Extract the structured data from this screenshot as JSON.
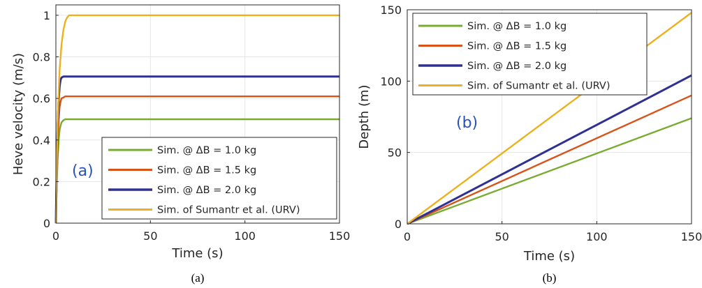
{
  "chart_data": [
    {
      "type": "line",
      "panel_label": "(a)",
      "caption": "(a)",
      "xlabel": "Time (s)",
      "ylabel": "Heve velocity (m/s)",
      "xlim": [
        0,
        150
      ],
      "ylim": [
        0,
        1.05
      ],
      "xticks": [
        0,
        50,
        100,
        150
      ],
      "yticks": [
        0,
        0.2,
        0.4,
        0.6,
        0.8,
        1
      ],
      "ytick_labels": [
        "0",
        "0.2",
        "0.4",
        "0.6",
        "0.8",
        "1"
      ],
      "grid": true,
      "legend_position": "bottom-right",
      "series": [
        {
          "name": "Sim. @ ΔB = 1.0 kg",
          "color": "#77ac30",
          "x": [
            0,
            0.5,
            1,
            1.5,
            2,
            2.5,
            3,
            4,
            5,
            6,
            8,
            150
          ],
          "y": [
            0,
            0.2,
            0.32,
            0.4,
            0.45,
            0.47,
            0.485,
            0.495,
            0.5,
            0.5,
            0.5,
            0.5
          ]
        },
        {
          "name": "Sim. @ ΔB = 1.5 kg",
          "color": "#d95319",
          "x": [
            0,
            0.5,
            1,
            1.5,
            2,
            2.5,
            3,
            4,
            5,
            6,
            8,
            150
          ],
          "y": [
            0,
            0.25,
            0.4,
            0.5,
            0.56,
            0.585,
            0.6,
            0.605,
            0.61,
            0.61,
            0.61,
            0.61
          ]
        },
        {
          "name": "Sim. @ ΔB = 2.0 kg",
          "color": "#2e3192",
          "x": [
            0,
            0.5,
            1,
            1.5,
            2,
            2.5,
            3,
            4,
            5,
            6,
            8,
            150
          ],
          "y": [
            0,
            0.3,
            0.48,
            0.6,
            0.66,
            0.69,
            0.7,
            0.705,
            0.705,
            0.705,
            0.705,
            0.705
          ]
        },
        {
          "name": "Sim. of Sumantr et al. (URV)",
          "color": "#edb120",
          "x": [
            0,
            0.5,
            1,
            1.5,
            2,
            3,
            4,
            5,
            6,
            7,
            8,
            10,
            150
          ],
          "y": [
            0,
            0.3,
            0.5,
            0.64,
            0.74,
            0.86,
            0.93,
            0.97,
            0.99,
            1.0,
            1.0,
            1.0,
            1.0
          ]
        }
      ]
    },
    {
      "type": "line",
      "panel_label": "(b)",
      "caption": "(b)",
      "xlabel": "Time (s)",
      "ylabel": "Depth (m)",
      "xlim": [
        0,
        150
      ],
      "ylim": [
        0,
        150
      ],
      "xticks": [
        0,
        50,
        100,
        150
      ],
      "yticks": [
        0,
        50,
        100,
        150
      ],
      "ytick_labels": [
        "0",
        "50",
        "100",
        "150"
      ],
      "grid": true,
      "legend_position": "top-left",
      "series": [
        {
          "name": "Sim. @ ΔB = 1.0 kg",
          "color": "#77ac30",
          "x": [
            0,
            150
          ],
          "y": [
            0,
            74
          ]
        },
        {
          "name": "Sim. @ ΔB = 1.5 kg",
          "color": "#d95319",
          "x": [
            0,
            150
          ],
          "y": [
            0,
            90
          ]
        },
        {
          "name": "Sim. @ ΔB = 2.0 kg",
          "color": "#2e3192",
          "x": [
            0,
            150
          ],
          "y": [
            0,
            104
          ]
        },
        {
          "name": "Sim. of Sumantr et al. (URV)",
          "color": "#edb120",
          "x": [
            0,
            150
          ],
          "y": [
            0,
            148
          ]
        }
      ]
    }
  ],
  "colors": {
    "axis": "#262626",
    "grid": "#e6e6e6",
    "panel_label": "#2a52be"
  }
}
